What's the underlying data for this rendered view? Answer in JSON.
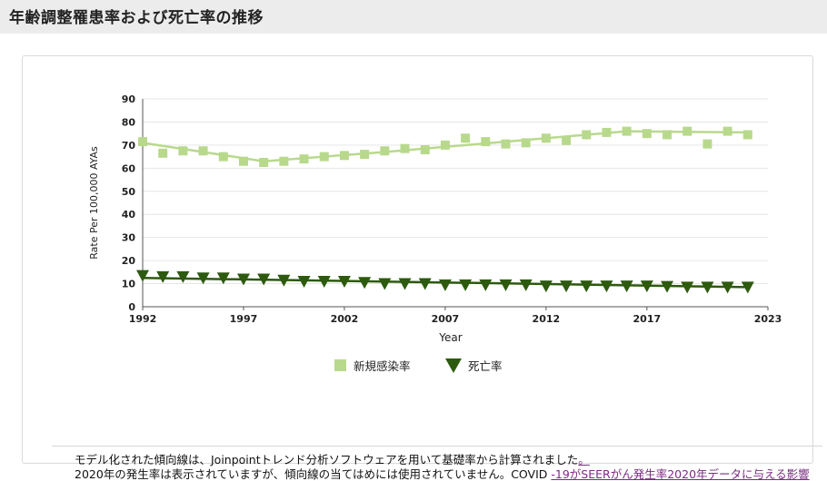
{
  "header": {
    "title": "年齢調整罹患率および死亡率の推移"
  },
  "notes": {
    "line1": "モデル化された傾向線は、Joinpointトレンド分析ソフトウェアを用いて基礎率から計算されました",
    "line1_link": "。",
    "line2_prefix": "2020年の発生率は表示されていますが、傾向線の当てはめには使用されていません。COVID ",
    "line2_link": "-19がSEERがん発生率2020年データに与える影響"
  },
  "chart_data": {
    "type": "scatter",
    "xlabel": "Year",
    "ylabel": "Rate Per 100,000 AYAs",
    "xlim": [
      1992,
      2023
    ],
    "ylim": [
      0,
      90
    ],
    "yticks": [
      0,
      10,
      20,
      30,
      40,
      50,
      60,
      70,
      80,
      90
    ],
    "xticks": [
      "1992",
      "1997",
      "2002",
      "2007",
      "2012",
      "2017",
      "2023"
    ],
    "grid": true,
    "legend_position": "bottom",
    "colors": {
      "incidence": "#b8d98c",
      "mortality": "#2d5a0e",
      "grid": "#e6e6e6",
      "axis": "#555555"
    },
    "series": [
      {
        "name": "新規感染率",
        "marker": "square",
        "x": [
          1992,
          1993,
          1994,
          1995,
          1996,
          1997,
          1998,
          1999,
          2000,
          2001,
          2002,
          2003,
          2004,
          2005,
          2006,
          2007,
          2008,
          2009,
          2010,
          2011,
          2012,
          2013,
          2014,
          2015,
          2016,
          2017,
          2018,
          2019,
          2020,
          2021,
          2022
        ],
        "y": [
          71.5,
          66.5,
          67.5,
          67.5,
          65.0,
          63.0,
          62.5,
          63.0,
          64.0,
          65.0,
          65.5,
          66.0,
          67.5,
          68.5,
          68.0,
          70.0,
          73.0,
          71.5,
          70.5,
          71.0,
          73.0,
          72.0,
          74.5,
          75.5,
          76.0,
          75.0,
          74.5,
          76.0,
          70.5,
          76.0,
          74.5
        ],
        "trend": {
          "x": [
            1992,
            1998,
            2004,
            2016,
            2022
          ],
          "y": [
            71.0,
            63.0,
            67.0,
            76.0,
            75.5
          ]
        }
      },
      {
        "name": "死亡率",
        "marker": "triangle-down",
        "x": [
          1992,
          1993,
          1994,
          1995,
          1996,
          1997,
          1998,
          1999,
          2000,
          2001,
          2002,
          2003,
          2004,
          2005,
          2006,
          2007,
          2008,
          2009,
          2010,
          2011,
          2012,
          2013,
          2014,
          2015,
          2016,
          2017,
          2018,
          2019,
          2020,
          2021,
          2022
        ],
        "y": [
          13.5,
          13.0,
          13.0,
          12.5,
          12.5,
          12.0,
          12.0,
          11.5,
          11.0,
          11.0,
          11.0,
          10.5,
          10.0,
          10.0,
          10.0,
          9.5,
          9.5,
          9.5,
          9.5,
          9.5,
          9.0,
          9.0,
          9.0,
          9.0,
          9.0,
          9.0,
          8.8,
          8.5,
          8.5,
          8.5,
          8.5
        ],
        "trend": {
          "x": [
            1992,
            2022
          ],
          "y": [
            12.5,
            8.5
          ]
        }
      }
    ]
  }
}
